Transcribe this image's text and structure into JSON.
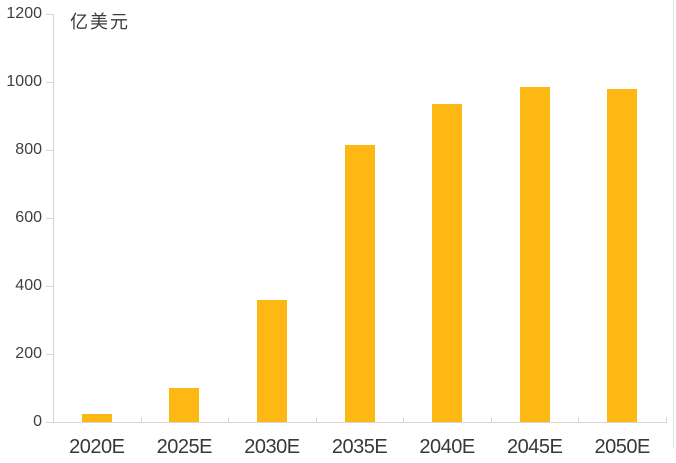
{
  "chart_data": {
    "type": "bar",
    "title": "",
    "unit_label": "亿美元",
    "categories": [
      "2020E",
      "2025E",
      "2030E",
      "2035E",
      "2040E",
      "2045E",
      "2050E"
    ],
    "values": [
      25,
      100,
      360,
      815,
      935,
      985,
      980
    ],
    "xlabel": "",
    "ylabel": "亿美元",
    "ylim": [
      0,
      1200
    ],
    "yticks": [
      0,
      200,
      400,
      600,
      800,
      1000,
      1200
    ],
    "grid": false,
    "legend_position": "none",
    "colors": {
      "bar": "#FDB813",
      "axis": "#D6D6D6",
      "tick_text": "#404040",
      "background": "#FFFFFF"
    }
  }
}
